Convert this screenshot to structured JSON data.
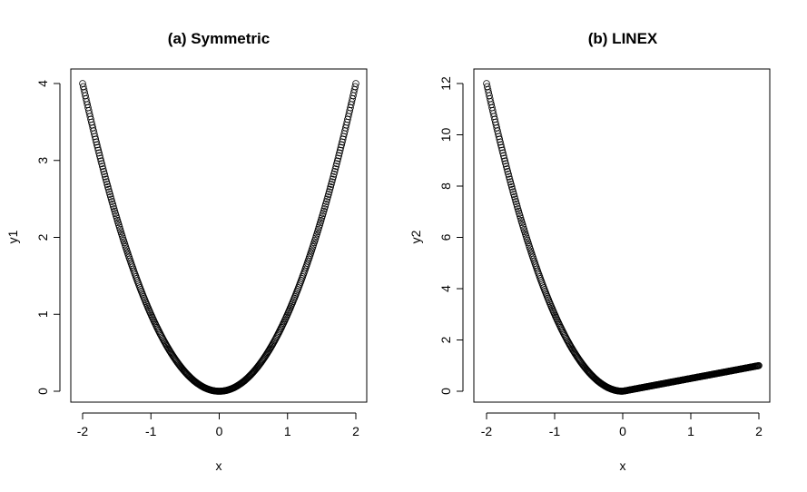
{
  "chart_data": [
    {
      "type": "scatter",
      "title": "(a) Symmetric",
      "xlabel": "x",
      "ylabel": "y1",
      "xlim": [
        -2,
        2
      ],
      "ylim": [
        0,
        4
      ],
      "xticks": [
        -2,
        -1,
        0,
        1,
        2
      ],
      "yticks": [
        0,
        1,
        2,
        3,
        4
      ],
      "xtick_labels": [
        "-2",
        "-1",
        "0",
        "1",
        "2"
      ],
      "ytick_labels": [
        "0",
        "1",
        "2",
        "3",
        "4"
      ],
      "series": [
        {
          "marker": "open-circle",
          "x_range": [
            -2,
            2
          ],
          "n_points": 401,
          "formula": "y = x^2",
          "sample_points": [
            [
              -2,
              4
            ],
            [
              -1,
              1
            ],
            [
              0,
              0
            ],
            [
              1,
              1
            ],
            [
              2,
              4
            ]
          ]
        }
      ],
      "grid": false
    },
    {
      "type": "scatter",
      "title": "(b) LINEX",
      "xlabel": "x",
      "ylabel": "y2",
      "xlim": [
        -2,
        2
      ],
      "ylim": [
        0,
        12
      ],
      "xticks": [
        -2,
        -1,
        0,
        1,
        2
      ],
      "yticks": [
        0,
        2,
        4,
        6,
        8,
        10,
        12
      ],
      "xtick_labels": [
        "-2",
        "-1",
        "0",
        "1",
        "2"
      ],
      "ytick_labels": [
        "0",
        "2",
        "4",
        "6",
        "8",
        "10",
        "12"
      ],
      "series": [
        {
          "marker": "open-circle",
          "x_range": [
            -2,
            2
          ],
          "n_points": 401,
          "formula": "y = 3x^2 for x < 0; y = x/2 for x >= 0",
          "sample_points": [
            [
              -2,
              12
            ],
            [
              -1,
              3
            ],
            [
              0,
              0
            ],
            [
              1,
              0.5
            ],
            [
              2,
              1
            ]
          ]
        }
      ],
      "grid": false
    }
  ]
}
